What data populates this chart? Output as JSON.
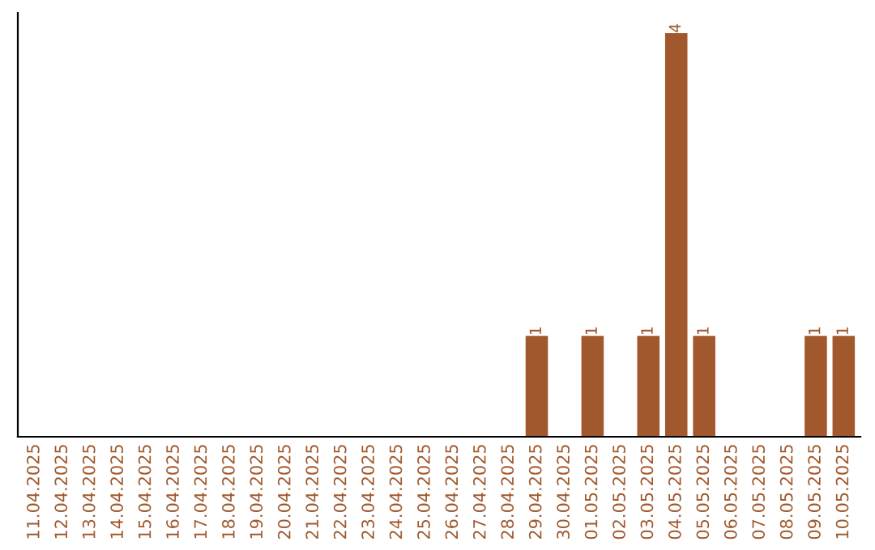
{
  "chart_data": {
    "type": "bar",
    "categories": [
      "11.04.2025",
      "12.04.2025",
      "13.04.2025",
      "14.04.2025",
      "15.04.2025",
      "16.04.2025",
      "17.04.2025",
      "18.04.2025",
      "19.04.2025",
      "20.04.2025",
      "21.04.2025",
      "22.04.2025",
      "23.04.2025",
      "24.04.2025",
      "25.04.2025",
      "26.04.2025",
      "27.04.2025",
      "28.04.2025",
      "29.04.2025",
      "30.04.2025",
      "01.05.2025",
      "02.05.2025",
      "03.05.2025",
      "04.05.2025",
      "05.05.2025",
      "06.05.2025",
      "07.05.2025",
      "08.05.2025",
      "09.05.2025",
      "10.05.2025"
    ],
    "values": [
      null,
      null,
      null,
      null,
      null,
      null,
      null,
      null,
      null,
      null,
      null,
      null,
      null,
      null,
      null,
      null,
      null,
      null,
      1,
      null,
      1,
      null,
      1,
      4,
      1,
      null,
      null,
      null,
      1,
      1
    ],
    "data_labels": true,
    "color": "#a0582c",
    "grid": false,
    "legend": false
  }
}
